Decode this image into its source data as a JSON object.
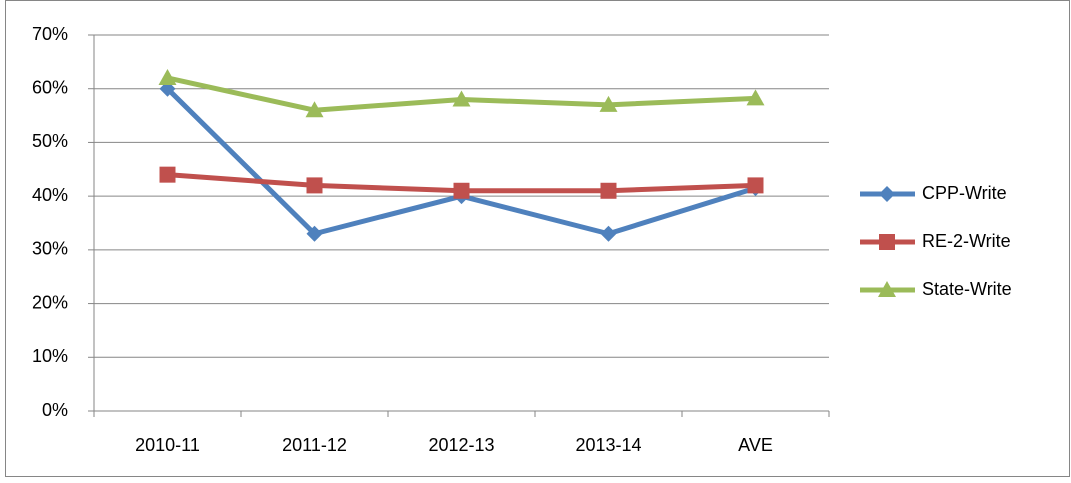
{
  "chart_data": {
    "type": "line",
    "categories": [
      "2010-11",
      "2011-12",
      "2012-13",
      "2013-14",
      "AVE"
    ],
    "series": [
      {
        "name": "CPP-Write",
        "color": "#4f81bd",
        "marker": "diamond",
        "values": [
          60,
          33,
          40,
          33,
          41.5
        ]
      },
      {
        "name": "RE-2-Write",
        "color": "#c0504d",
        "marker": "square",
        "values": [
          44,
          42,
          41,
          41,
          42
        ]
      },
      {
        "name": "State-Write",
        "color": "#9bbb59",
        "marker": "triangle",
        "values": [
          62,
          56,
          58,
          57,
          58.2
        ]
      }
    ],
    "ylim": [
      0,
      70
    ],
    "yticks": [
      {
        "value": 0,
        "label": "0%"
      },
      {
        "value": 10,
        "label": "10%"
      },
      {
        "value": 20,
        "label": "20%"
      },
      {
        "value": 30,
        "label": "30%"
      },
      {
        "value": 40,
        "label": "40%"
      },
      {
        "value": 50,
        "label": "50%"
      },
      {
        "value": 60,
        "label": "60%"
      },
      {
        "value": 70,
        "label": "70%"
      }
    ],
    "grid": true,
    "legend": "right"
  }
}
